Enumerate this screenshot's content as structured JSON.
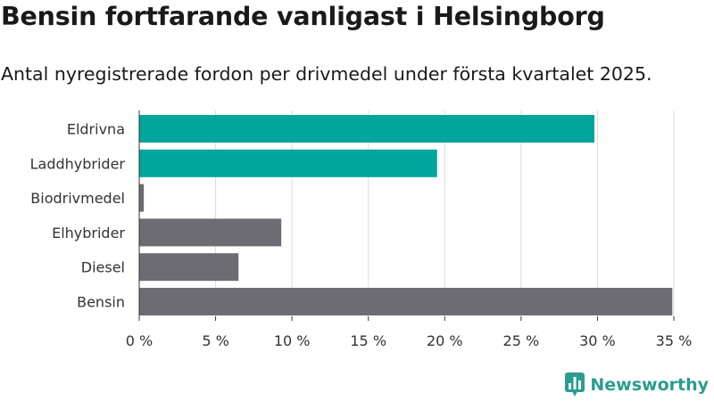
{
  "title": "Bensin fortfarande vanligast i Helsingborg",
  "subtitle": "Antal nyregistrerade fordon per drivmedel under första kvartalet 2025.",
  "brand": {
    "name": "Newsworthy",
    "color": "#2a9d8f"
  },
  "colors": {
    "highlight": "#00a59b",
    "default": "#6d6c72",
    "grid": "#dcdcdc",
    "axis": "#333333"
  },
  "chart_data": {
    "type": "bar",
    "orientation": "horizontal",
    "categories": [
      "Eldrivna",
      "Laddhybrider",
      "Biodrivmedel",
      "Elhybrider",
      "Diesel",
      "Bensin"
    ],
    "values": [
      29.8,
      19.5,
      0.3,
      9.3,
      6.5,
      34.9
    ],
    "highlighted": [
      true,
      true,
      false,
      false,
      false,
      false
    ],
    "xlim": [
      0,
      35
    ],
    "xticks": [
      0,
      5,
      10,
      15,
      20,
      25,
      30,
      35
    ],
    "tick_suffix": " %",
    "grid": true,
    "legend": "none"
  }
}
